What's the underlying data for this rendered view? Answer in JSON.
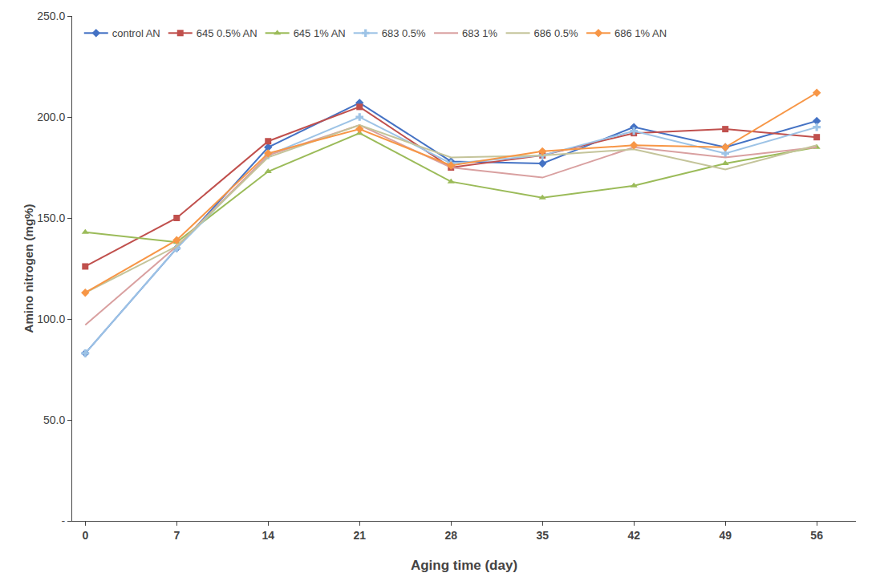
{
  "chart_data": {
    "type": "line",
    "x": [
      0,
      7,
      14,
      21,
      28,
      35,
      42,
      49,
      56
    ],
    "series": [
      {
        "name": "control AN",
        "color": "#4472C4",
        "marker": "diamond",
        "values": [
          83,
          135,
          185,
          207,
          178,
          177,
          195,
          185,
          198
        ]
      },
      {
        "name": "645 0.5% AN",
        "color": "#C0504D",
        "marker": "square",
        "values": [
          126,
          150,
          188,
          205,
          175,
          181,
          192,
          194,
          190
        ]
      },
      {
        "name": "645 1% AN",
        "color": "#9BBB59",
        "marker": "triangle-up",
        "values": [
          143,
          138,
          173,
          192,
          168,
          160,
          166,
          177,
          185
        ]
      },
      {
        "name": "683 0.5%",
        "color": "#9DC3E6",
        "marker": "cross",
        "values": [
          83,
          135,
          181,
          200,
          177,
          181,
          193,
          182,
          195
        ]
      },
      {
        "name": "683 1%",
        "color": "#D9A0A0",
        "marker": "none",
        "values": [
          97,
          136,
          181,
          196,
          175,
          170,
          185,
          180,
          185
        ]
      },
      {
        "name": "686 0.5%",
        "color": "#C4C49A",
        "marker": "none",
        "values": [
          113,
          136,
          180,
          196,
          180,
          181,
          184,
          174,
          186
        ]
      },
      {
        "name": "686 1% AN",
        "color": "#F79646",
        "marker": "diamond",
        "values": [
          113,
          139,
          182,
          194,
          176,
          183,
          186,
          185,
          212
        ]
      }
    ],
    "xlabel": "Aging time (day)",
    "ylabel": "Amino nitrogen (mg%)",
    "xlim": [
      -1,
      59
    ],
    "xticks": [
      0,
      7,
      14,
      21,
      28,
      35,
      42,
      49,
      56
    ],
    "ylim": [
      0,
      250
    ],
    "yticks": [
      {
        "value": 0,
        "label": "-"
      },
      {
        "value": 50,
        "label": "50.0"
      },
      {
        "value": 100,
        "label": "100.0"
      },
      {
        "value": 150,
        "label": "150.0"
      },
      {
        "value": 200,
        "label": "200.0"
      },
      {
        "value": 250,
        "label": "250.0"
      }
    ],
    "grid": false,
    "legend": "upper left"
  }
}
